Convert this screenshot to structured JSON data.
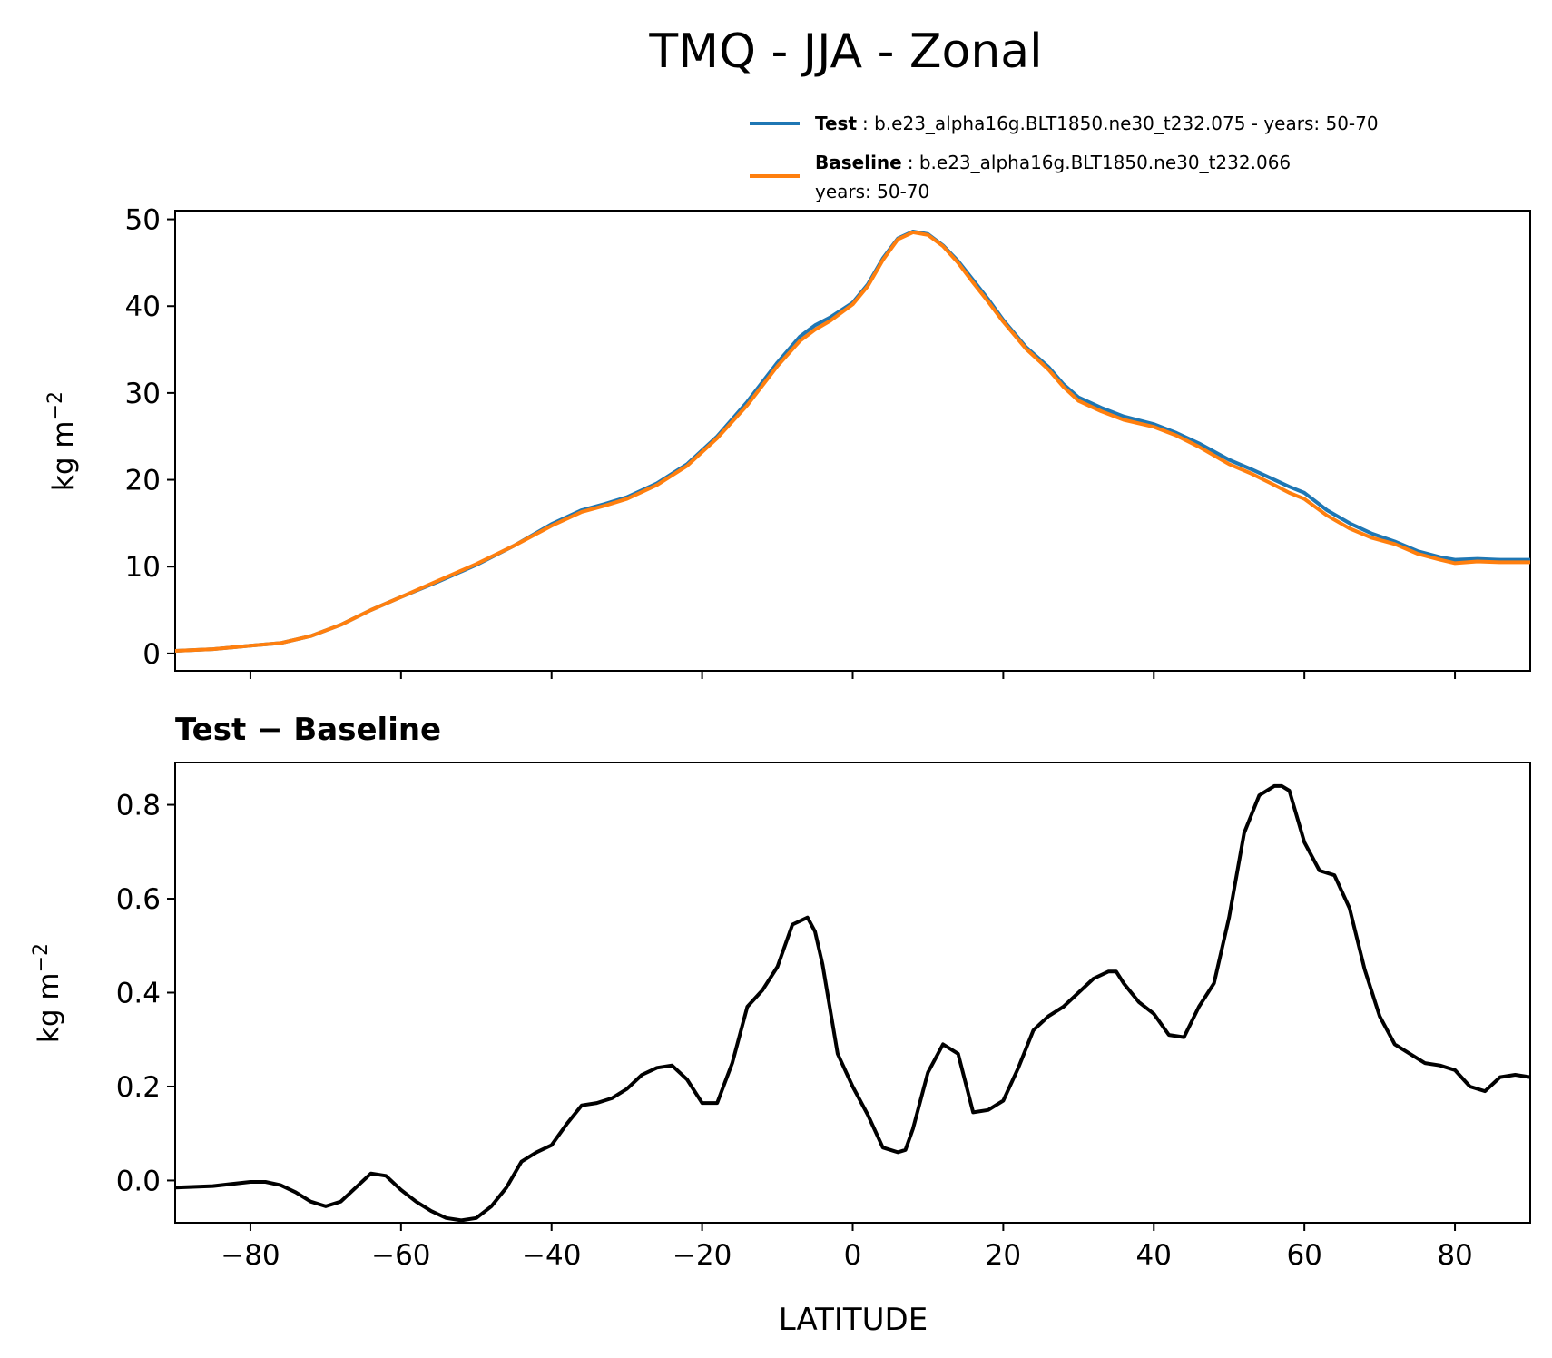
{
  "chart_data": {
    "title": "TMQ - JJA - Zonal",
    "xlabel": "LATITUDE",
    "xlim": [
      -90,
      90
    ],
    "xticks": [
      -80,
      -60,
      -40,
      -20,
      0,
      20,
      40,
      60,
      80
    ],
    "xtick_labels": [
      "−80",
      "−60",
      "−40",
      "−20",
      "0",
      "20",
      "40",
      "60",
      "80"
    ],
    "legend": {
      "position": "above top-right",
      "entries": [
        {
          "name": "Test",
          "text": ": b.e23_alpha16g.BLT1850.ne30_t232.075 - years: 50-70",
          "text2": "",
          "color": "#1f77b4"
        },
        {
          "name": "Baseline",
          "text": ": b.e23_alpha16g.BLT1850.ne30_t232.066",
          "text2": "years: 50-70",
          "color": "#ff7f0e"
        }
      ]
    },
    "panels": [
      {
        "type": "line",
        "ylabel": "kg m",
        "ylabel_exp": "−2",
        "ylim": [
          -2,
          51
        ],
        "yticks": [
          0,
          10,
          20,
          30,
          40,
          50
        ],
        "ytick_labels": [
          "0",
          "10",
          "20",
          "30",
          "40",
          "50"
        ],
        "series": [
          {
            "name": "Test",
            "color": "#1f77b4",
            "x": [
              -90,
              -85,
              -80,
              -76,
              -72,
              -68,
              -64,
              -60,
              -55,
              -50,
              -45,
              -40,
              -36,
              -33,
              -30,
              -26,
              -22,
              -18,
              -14,
              -10,
              -7,
              -5,
              -3,
              0,
              2,
              4,
              6,
              8,
              10,
              12,
              14,
              16,
              18,
              20,
              23,
              26,
              28,
              30,
              33,
              36,
              40,
              43,
              46,
              50,
              53,
              56,
              58,
              60,
              63,
              66,
              69,
              72,
              75,
              78,
              80,
              83,
              86,
              90
            ],
            "y": [
              0.3,
              0.5,
              0.9,
              1.2,
              2.0,
              3.3,
              5.0,
              6.5,
              8.3,
              10.2,
              12.4,
              14.9,
              16.5,
              17.2,
              18.0,
              19.6,
              21.8,
              25.0,
              29.0,
              33.5,
              36.5,
              37.8,
              38.7,
              40.4,
              42.5,
              45.5,
              47.8,
              48.6,
              48.3,
              47.0,
              45.2,
              43.0,
              40.8,
              38.4,
              35.3,
              33.0,
              31.0,
              29.5,
              28.3,
              27.3,
              26.4,
              25.4,
              24.2,
              22.3,
              21.2,
              20.0,
              19.2,
              18.5,
              16.5,
              15.0,
              13.8,
              12.9,
              11.8,
              11.1,
              10.8,
              10.9,
              10.8,
              10.8
            ]
          },
          {
            "name": "Baseline",
            "color": "#ff7f0e",
            "x": [
              -90,
              -85,
              -80,
              -76,
              -72,
              -68,
              -64,
              -60,
              -55,
              -50,
              -45,
              -40,
              -36,
              -33,
              -30,
              -26,
              -22,
              -18,
              -14,
              -10,
              -7,
              -5,
              -3,
              0,
              2,
              4,
              6,
              8,
              10,
              12,
              14,
              16,
              18,
              20,
              23,
              26,
              28,
              30,
              33,
              36,
              40,
              43,
              46,
              50,
              53,
              56,
              58,
              60,
              63,
              66,
              69,
              72,
              75,
              78,
              80,
              83,
              86,
              90
            ],
            "y": [
              0.3,
              0.5,
              0.9,
              1.2,
              2.0,
              3.3,
              5.0,
              6.5,
              8.4,
              10.3,
              12.4,
              14.7,
              16.3,
              17.0,
              17.8,
              19.4,
              21.6,
              24.8,
              28.6,
              33.1,
              36.0,
              37.3,
              38.3,
              40.2,
              42.3,
              45.3,
              47.7,
              48.5,
              48.2,
              46.9,
              45.0,
              42.7,
              40.5,
              38.2,
              35.1,
              32.7,
              30.7,
              29.1,
              27.9,
              26.9,
              26.1,
              25.1,
              23.8,
              21.8,
              20.7,
              19.4,
              18.5,
              17.8,
              15.9,
              14.4,
              13.3,
              12.6,
              11.5,
              10.8,
              10.4,
              10.6,
              10.5,
              10.5
            ]
          }
        ]
      },
      {
        "type": "line",
        "title": "Test − Baseline",
        "ylabel": "kg m",
        "ylabel_exp": "−2",
        "ylim": [
          -0.09,
          0.89
        ],
        "yticks": [
          0.0,
          0.2,
          0.4,
          0.6,
          0.8
        ],
        "ytick_labels": [
          "0.0",
          "0.2",
          "0.4",
          "0.6",
          "0.8"
        ],
        "series": [
          {
            "name": "Test − Baseline",
            "color": "#000000",
            "x": [
              -90,
              -85,
              -80,
              -78,
              -76,
              -74,
              -72,
              -70,
              -68,
              -66,
              -64,
              -62,
              -60,
              -58,
              -56,
              -54,
              -52,
              -50,
              -48,
              -46,
              -44,
              -42,
              -40,
              -38,
              -36,
              -34,
              -32,
              -30,
              -28,
              -26,
              -24,
              -22,
              -20,
              -18,
              -16,
              -14,
              -12,
              -10,
              -8,
              -6,
              -5,
              -4,
              -2,
              0,
              2,
              4,
              6,
              7,
              8,
              10,
              12,
              14,
              16,
              18,
              20,
              22,
              24,
              26,
              28,
              30,
              32,
              34,
              35,
              36,
              38,
              40,
              42,
              44,
              46,
              48,
              50,
              52,
              54,
              56,
              57,
              58,
              60,
              62,
              64,
              66,
              68,
              70,
              72,
              74,
              76,
              78,
              80,
              82,
              84,
              86,
              88,
              90
            ],
            "y": [
              -0.015,
              -0.012,
              -0.003,
              -0.003,
              -0.01,
              -0.025,
              -0.045,
              -0.055,
              -0.045,
              -0.015,
              0.015,
              0.01,
              -0.02,
              -0.045,
              -0.065,
              -0.08,
              -0.085,
              -0.08,
              -0.055,
              -0.015,
              0.04,
              0.06,
              0.075,
              0.12,
              0.16,
              0.165,
              0.175,
              0.195,
              0.225,
              0.24,
              0.245,
              0.215,
              0.165,
              0.165,
              0.25,
              0.37,
              0.405,
              0.455,
              0.545,
              0.56,
              0.53,
              0.46,
              0.27,
              0.2,
              0.14,
              0.07,
              0.06,
              0.065,
              0.11,
              0.23,
              0.29,
              0.27,
              0.145,
              0.15,
              0.17,
              0.24,
              0.32,
              0.35,
              0.37,
              0.4,
              0.43,
              0.445,
              0.445,
              0.42,
              0.38,
              0.355,
              0.31,
              0.305,
              0.37,
              0.42,
              0.56,
              0.74,
              0.82,
              0.84,
              0.84,
              0.83,
              0.72,
              0.66,
              0.65,
              0.58,
              0.45,
              0.35,
              0.29,
              0.27,
              0.25,
              0.245,
              0.235,
              0.2,
              0.19,
              0.22,
              0.225,
              0.22
            ]
          }
        ]
      }
    ]
  }
}
